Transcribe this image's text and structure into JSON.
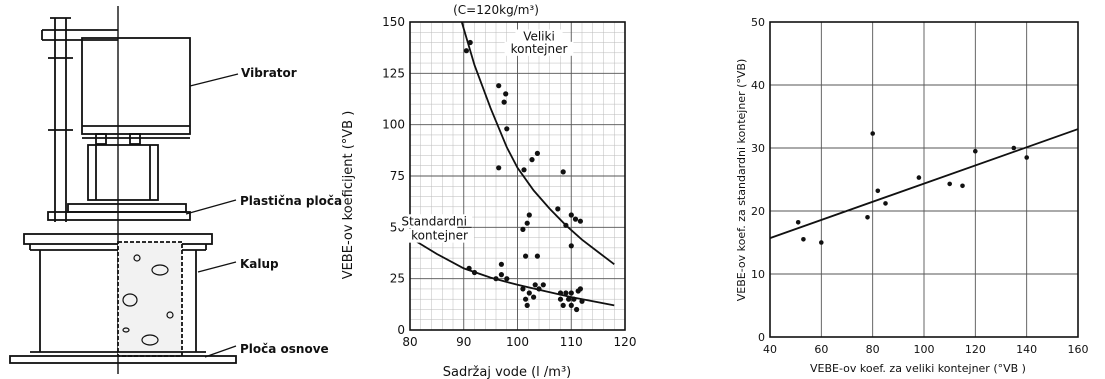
{
  "diagram": {
    "labels": {
      "vibrator": "Vibrator",
      "plastic_plate": "Plastična ploča",
      "mold": "Kalup",
      "base_plate": "Ploča osnove"
    }
  },
  "chart_data": [
    {
      "type": "scatter",
      "title": "(C=120kg/m³)",
      "xlabel": "Sadržaj vode (l /m³)",
      "ylabel": "VEBE-ov koeficijent (°VB )",
      "xlim": [
        80,
        120
      ],
      "ylim": [
        0,
        150
      ],
      "xticks": [
        80,
        90,
        100,
        110,
        120
      ],
      "yticks": [
        0,
        25,
        50,
        75,
        100,
        125,
        150
      ],
      "grid": true,
      "annotations": [
        {
          "text": "Veliki",
          "x": 104,
          "y": 141
        },
        {
          "text": "kontejner",
          "x": 104,
          "y": 135
        },
        {
          "text": "Standardni",
          "x": 84.5,
          "y": 51
        },
        {
          "text": "kontejner",
          "x": 85.5,
          "y": 44
        }
      ],
      "series": [
        {
          "kind": "scatter",
          "points": [
            [
              90.5,
              136
            ],
            [
              91.2,
              140
            ],
            [
              91,
              30
            ],
            [
              92,
              28
            ],
            [
              96,
              25
            ],
            [
              96.5,
              79
            ],
            [
              96.5,
              119
            ],
            [
              97,
              32
            ],
            [
              97,
              27
            ],
            [
              97.5,
              111
            ],
            [
              97.8,
              115
            ],
            [
              98,
              98
            ],
            [
              98,
              25
            ],
            [
              101.2,
              78
            ],
            [
              101,
              49
            ],
            [
              101.5,
              36
            ],
            [
              101.8,
              52
            ],
            [
              102.2,
              56
            ],
            [
              101,
              20
            ],
            [
              101.5,
              15
            ],
            [
              101.8,
              12
            ],
            [
              102.2,
              18
            ],
            [
              102.7,
              83
            ],
            [
              103.3,
              22
            ],
            [
              103.7,
              86
            ],
            [
              103.7,
              36
            ],
            [
              103,
              16
            ],
            [
              104,
              20
            ],
            [
              104.8,
              22
            ],
            [
              107.5,
              59
            ],
            [
              108.5,
              77
            ],
            [
              109,
              51
            ],
            [
              110,
              56
            ],
            [
              110,
              41
            ],
            [
              110.8,
              54
            ],
            [
              111.7,
              53
            ],
            [
              108,
              18
            ],
            [
              108,
              15
            ],
            [
              108.5,
              12
            ],
            [
              109,
              18
            ],
            [
              109.5,
              15
            ],
            [
              110,
              18
            ],
            [
              110,
              12
            ],
            [
              110.5,
              15
            ],
            [
              111,
              10
            ],
            [
              111.3,
              19
            ],
            [
              111.7,
              20
            ],
            [
              112,
              14
            ]
          ]
        },
        {
          "kind": "line",
          "name": "Veliki kontejner",
          "x": [
            88.5,
            92,
            95,
            98,
            100,
            103,
            106,
            109,
            112,
            115,
            118
          ],
          "y": [
            160,
            129,
            108,
            89,
            79,
            68,
            59,
            51,
            44,
            38,
            32
          ]
        },
        {
          "kind": "line",
          "name": "Standardni kontejner",
          "x": [
            80,
            85,
            90,
            95,
            100,
            105,
            110,
            115,
            118
          ],
          "y": [
            45,
            37,
            30,
            25.5,
            22,
            19,
            16,
            13.5,
            12
          ]
        }
      ]
    },
    {
      "type": "scatter",
      "xlabel": "VEBE-ov koef. za veliki kontejner (°VB )",
      "ylabel": "VEBE-ov koef. za standardni kontejner (°VB)",
      "xlim": [
        40,
        160
      ],
      "ylim": [
        0,
        50
      ],
      "xticks": [
        40,
        60,
        80,
        100,
        120,
        140,
        160
      ],
      "yticks": [
        0,
        10,
        20,
        30,
        40,
        50
      ],
      "grid": true,
      "series": [
        {
          "kind": "scatter",
          "points": [
            [
              51,
              18.2
            ],
            [
              53,
              15.5
            ],
            [
              60,
              15
            ],
            [
              78,
              19
            ],
            [
              80,
              32.3
            ],
            [
              82,
              23.2
            ],
            [
              85,
              21.2
            ],
            [
              98,
              25.3
            ],
            [
              110,
              24.3
            ],
            [
              115,
              24
            ],
            [
              120,
              29.5
            ],
            [
              135,
              30
            ],
            [
              140,
              28.5
            ]
          ]
        },
        {
          "kind": "line",
          "name": "trend",
          "x": [
            40,
            160
          ],
          "y": [
            15.7,
            33
          ]
        }
      ]
    }
  ]
}
